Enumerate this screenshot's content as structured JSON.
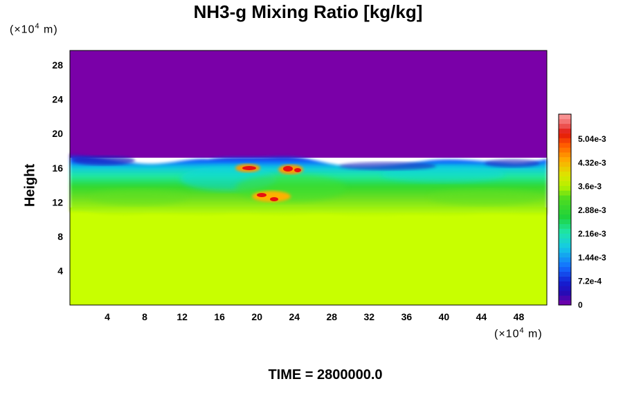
{
  "chart_data": {
    "type": "heatmap",
    "title": "NH3-g Mixing Ratio [kg/kg]",
    "ylabel": "Height",
    "x_unit": "(×10",
    "x_unit_exp": "4",
    "x_unit_suffix": " m)",
    "y_unit": "(×10",
    "y_unit_exp": "4",
    "y_unit_suffix": " m)",
    "footer": "TIME = 2800000.0",
    "xlim": [
      0,
      51
    ],
    "ylim": [
      0,
      29.7
    ],
    "x_ticks": [
      "4",
      "8",
      "12",
      "16",
      "20",
      "24",
      "28",
      "32",
      "36",
      "40",
      "44",
      "48"
    ],
    "y_ticks": [
      "4",
      "8",
      "12",
      "16",
      "20",
      "24",
      "28"
    ],
    "colorbar": {
      "min": 0,
      "max": 0.0058,
      "labels": [
        "0",
        "7.2e-4",
        "1.44e-3",
        "2.16e-3",
        "2.88e-3",
        "3.6e-3",
        "4.32e-3",
        "5.04e-3"
      ],
      "label_values": [
        0,
        0.00072,
        0.00144,
        0.00216,
        0.00288,
        0.0036,
        0.00432,
        0.00504
      ]
    },
    "field_summary": [
      {
        "region": "upper",
        "height_range": [
          17.5,
          29.7
        ],
        "value": 0
      },
      {
        "region": "transition",
        "height_range": [
          10.5,
          17.5
        ],
        "value_range": [
          0.0007,
          0.0038
        ]
      },
      {
        "region": "lower",
        "height_range": [
          0,
          10.5
        ],
        "value": 0.0038
      },
      {
        "region": "peak-1",
        "x": 20,
        "y": 16,
        "value": 0.0052
      },
      {
        "region": "peak-2",
        "x": 23.5,
        "y": 15.7,
        "value": 0.005
      },
      {
        "region": "peak-3",
        "x": 22,
        "y": 12.5,
        "value": 0.0051
      }
    ]
  }
}
